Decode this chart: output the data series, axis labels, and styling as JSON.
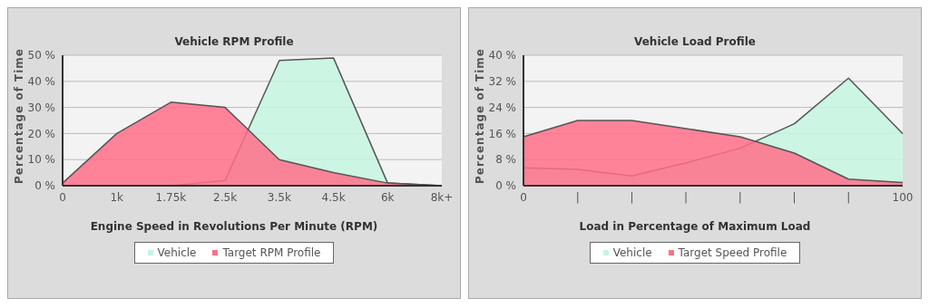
{
  "chart_data": [
    {
      "type": "area",
      "title": "Vehicle RPM Profile",
      "xlabel": "Engine Speed in Revolutions Per Minute (RPM)",
      "ylabel": "Percentage of Time",
      "categories": [
        "0",
        "1k",
        "1.75k",
        "2.5k",
        "3.5k",
        "4.5k",
        "6k",
        "8k+"
      ],
      "series": [
        {
          "name": "Vehicle",
          "color": "#c4f5df",
          "values": [
            0,
            0,
            0,
            2,
            48,
            49,
            1,
            0
          ]
        },
        {
          "name": "Target RPM Profile",
          "color": "#ff6f88",
          "values": [
            1,
            20,
            32,
            30,
            10,
            5,
            1,
            0
          ]
        }
      ],
      "ylim": [
        0,
        50
      ],
      "yticks": [
        {
          "value": 0,
          "label": "0 %"
        },
        {
          "value": 10,
          "label": "10 %"
        },
        {
          "value": 20,
          "label": "20 %"
        },
        {
          "value": 30,
          "label": "30 %"
        },
        {
          "value": 40,
          "label": "40 %"
        },
        {
          "value": 50,
          "label": "50 %"
        }
      ],
      "grid": "y",
      "legend": "bottom",
      "marker": "none"
    },
    {
      "type": "area",
      "title": "Vehicle Load Profile",
      "xlabel": "Load in Percentage of Maximum Load",
      "ylabel": "Percentage of Time",
      "categories": [
        "0",
        "|",
        "|",
        "|",
        "|",
        "|",
        "|",
        "100"
      ],
      "series": [
        {
          "name": "Vehicle",
          "color": "#c4f5df",
          "values": [
            5.5,
            5,
            3,
            7,
            11.5,
            19,
            33,
            16
          ]
        },
        {
          "name": "Target Speed Profile",
          "color": "#ff6f88",
          "values": [
            15,
            20,
            20,
            17.5,
            15,
            10,
            2,
            1
          ]
        }
      ],
      "ylim": [
        0,
        40
      ],
      "yticks": [
        {
          "value": 0,
          "label": "0 %"
        },
        {
          "value": 8,
          "label": "8 %"
        },
        {
          "value": 16,
          "label": "16 %"
        },
        {
          "value": 24,
          "label": "24 %"
        },
        {
          "value": 32,
          "label": "32 %"
        },
        {
          "value": 40,
          "label": "40 %"
        }
      ],
      "grid": "y",
      "legend": "bottom",
      "marker": "none"
    }
  ]
}
